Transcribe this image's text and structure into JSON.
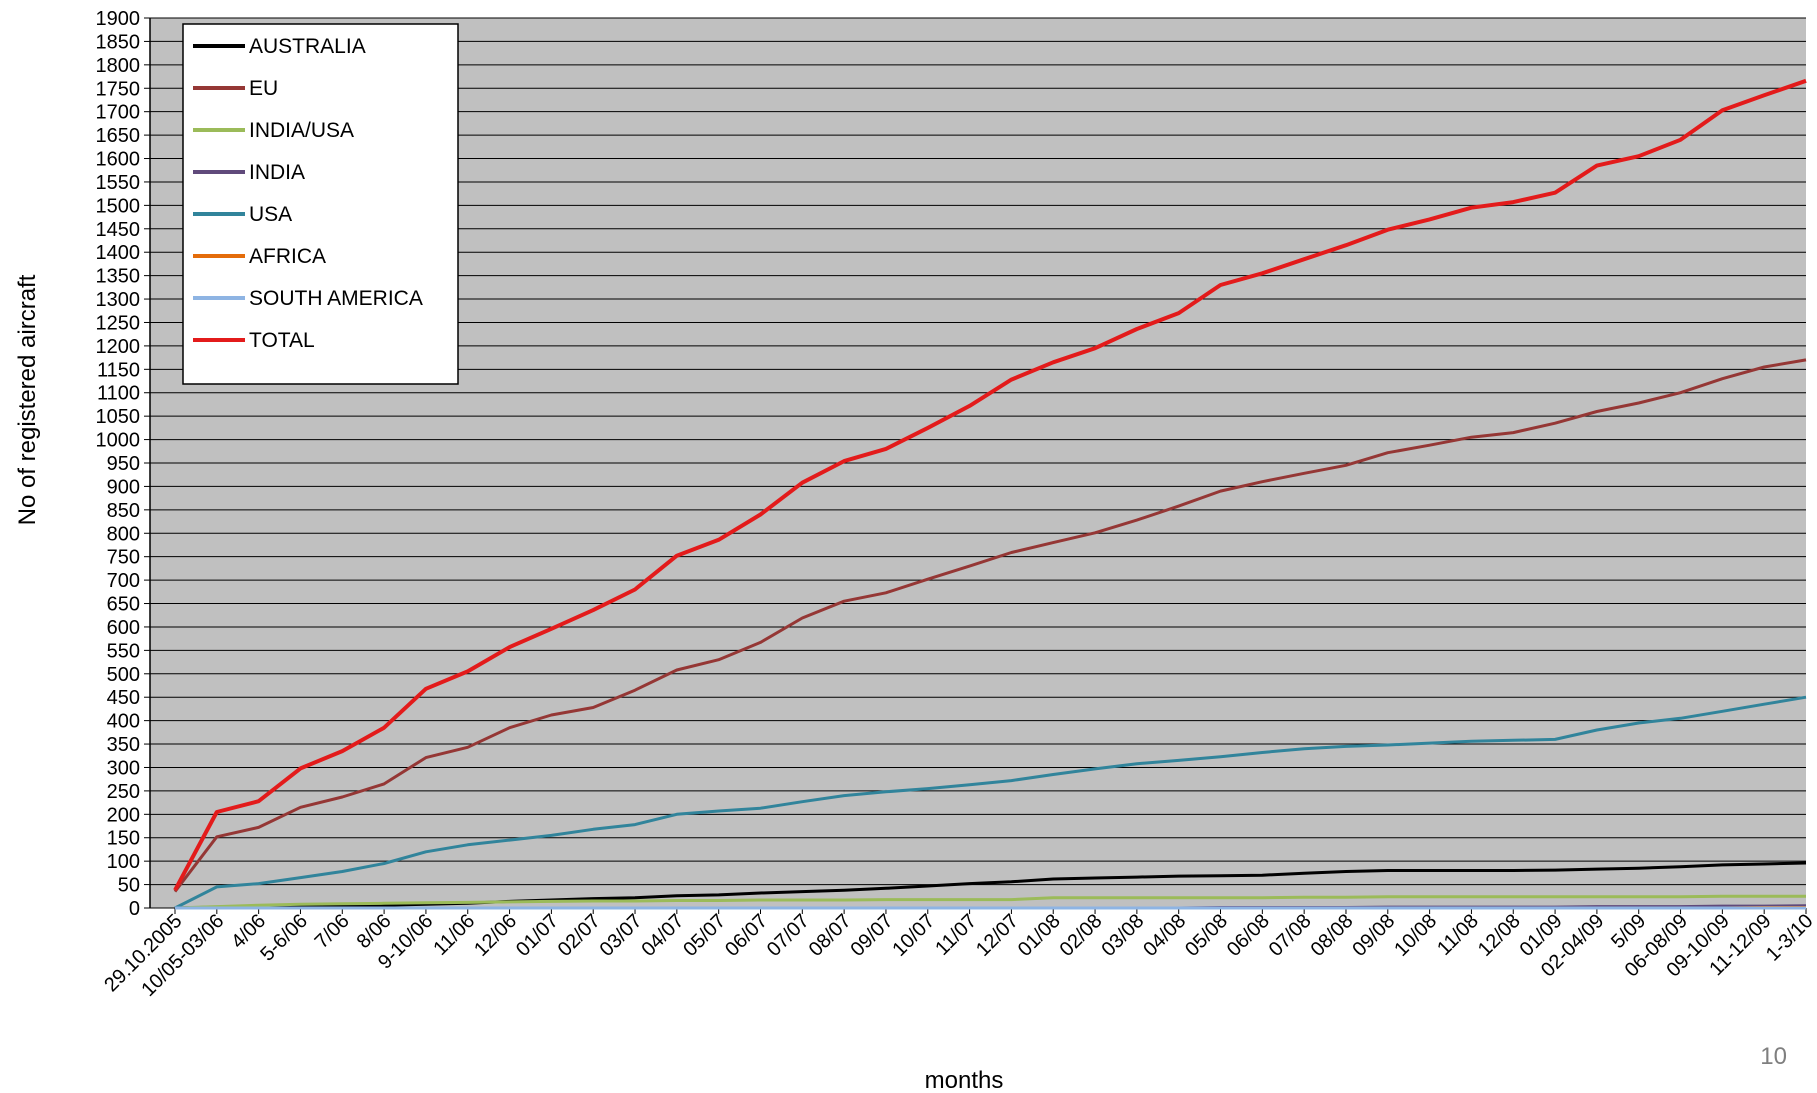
{
  "slide": {
    "page_number": "10"
  },
  "chart_data": {
    "type": "line",
    "xlabel": "months",
    "ylabel": "No of registered aircraft",
    "ylim": [
      0,
      1900
    ],
    "ytick_step": 50,
    "grid": true,
    "legend_position": "top-left",
    "background": "#c0c0c0",
    "categories": [
      "29.10.2005",
      "10/05-03/06",
      "4/06",
      "5-6/06",
      "7/06",
      "8/06",
      "9-10/06",
      "11/06",
      "12/06",
      "01/07",
      "02/07",
      "03/07",
      "04/07",
      "05/07",
      "06/07",
      "07/07",
      "08/07",
      "09/07",
      "10/07",
      "11/07",
      "12/07",
      "01/08",
      "02/08",
      "03/08",
      "04/08",
      "05/08",
      "06/08",
      "07/08",
      "08/08",
      "09/08",
      "10/08",
      "11/08",
      "12/08",
      "01/09",
      "02-04/09",
      "5/09",
      "06-08/09",
      "09-10/09",
      "11-12/09",
      "1-3/10"
    ],
    "series": [
      {
        "name": "AUSTRALIA",
        "color": "#000000",
        "values": [
          0,
          2,
          3,
          4,
          5,
          6,
          8,
          10,
          14,
          17,
          20,
          22,
          26,
          28,
          32,
          35,
          38,
          42,
          47,
          52,
          56,
          62,
          64,
          66,
          68,
          69,
          70,
          74,
          78,
          80,
          80,
          80,
          80,
          81,
          83,
          85,
          88,
          92,
          94,
          96
        ]
      },
      {
        "name": "EU",
        "color": "#953735",
        "values": [
          35,
          152,
          172,
          215,
          237,
          265,
          321,
          343,
          385,
          412,
          428,
          465,
          508,
          530,
          567,
          619,
          655,
          673,
          702,
          730,
          759,
          780,
          801,
          828,
          858,
          890,
          910,
          928,
          945,
          972,
          988,
          1005,
          1015,
          1035,
          1060,
          1078,
          1100,
          1130,
          1155,
          1170
        ]
      },
      {
        "name": "INDIA/USA",
        "color": "#9bbb59",
        "values": [
          0,
          3,
          6,
          8,
          9,
          10,
          11,
          12,
          13,
          14,
          15,
          15,
          16,
          16,
          17,
          17,
          17,
          18,
          18,
          18,
          18,
          22,
          22,
          22,
          22,
          22,
          22,
          23,
          23,
          24,
          24,
          24,
          24,
          24,
          24,
          24,
          24,
          25,
          25,
          25
        ]
      },
      {
        "name": "INDIA",
        "color": "#604a7b",
        "values": [
          0,
          0,
          0,
          0,
          0,
          0,
          0,
          0,
          0,
          0,
          0,
          0,
          0,
          0,
          0,
          0,
          0,
          0,
          0,
          0,
          0,
          0,
          0,
          0,
          0,
          1,
          1,
          1,
          1,
          2,
          2,
          2,
          2,
          2,
          3,
          3,
          3,
          4,
          4,
          5
        ]
      },
      {
        "name": "USA",
        "color": "#31849b",
        "values": [
          0,
          45,
          52,
          65,
          78,
          95,
          120,
          135,
          145,
          155,
          168,
          178,
          200,
          207,
          213,
          227,
          240,
          248,
          255,
          263,
          272,
          285,
          297,
          308,
          315,
          323,
          332,
          340,
          345,
          348,
          352,
          356,
          358,
          360,
          380,
          395,
          405,
          420,
          435,
          450
        ]
      },
      {
        "name": "AFRICA",
        "color": "#e46c0a",
        "values": [
          0,
          0,
          0,
          0,
          0,
          0,
          0,
          0,
          0,
          0,
          0,
          0,
          0,
          0,
          0,
          0,
          0,
          0,
          0,
          0,
          0,
          0,
          0,
          0,
          0,
          0,
          0,
          0,
          0,
          0,
          0,
          0,
          0,
          0,
          0,
          0,
          0,
          0,
          1,
          1
        ]
      },
      {
        "name": "SOUTH AMERICA",
        "color": "#8eb4e3",
        "values": [
          0,
          0,
          0,
          0,
          0,
          0,
          0,
          0,
          0,
          0,
          0,
          0,
          0,
          0,
          0,
          0,
          0,
          0,
          0,
          0,
          0,
          0,
          0,
          0,
          0,
          0,
          0,
          0,
          0,
          0,
          0,
          0,
          0,
          0,
          0,
          0,
          0,
          0,
          0,
          0
        ]
      },
      {
        "name": "TOTAL",
        "color": "#e31b1b",
        "values": [
          38,
          205,
          228,
          298,
          335,
          385,
          468,
          505,
          557,
          596,
          636,
          680,
          752,
          786,
          840,
          908,
          954,
          980,
          1025,
          1072,
          1128,
          1165,
          1195,
          1236,
          1270,
          1330,
          1355,
          1385,
          1415,
          1448,
          1470,
          1495,
          1507,
          1527,
          1585,
          1605,
          1640,
          1703,
          1735,
          1766
        ]
      }
    ]
  }
}
